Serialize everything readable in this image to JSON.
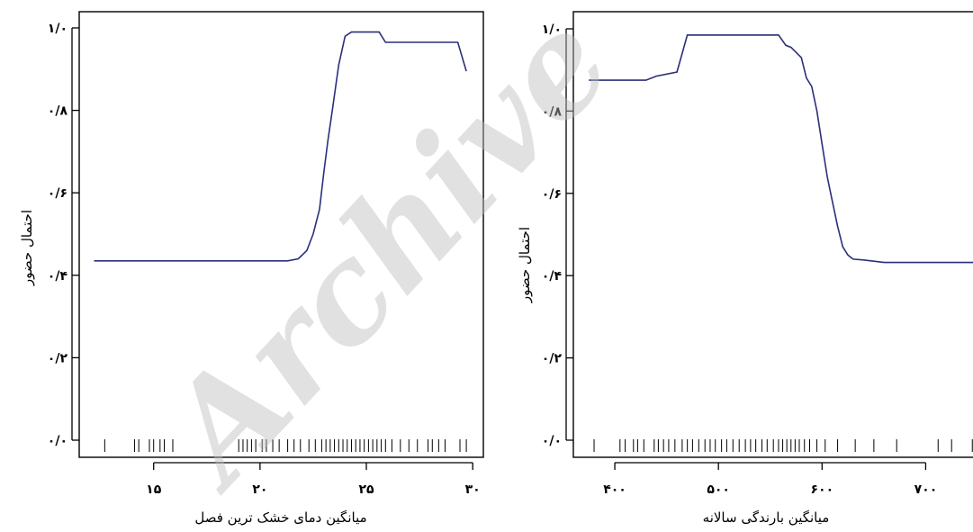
{
  "watermark": "Archive",
  "chart_data": [
    {
      "type": "line",
      "xlabel": "میانگین دمای خشک ترین فصل",
      "ylabel": "احتمال حضور",
      "xlim": [
        11.5,
        30.5
      ],
      "ylim": [
        0.0,
        1.0
      ],
      "x_ticks": [
        15,
        20,
        25,
        30
      ],
      "x_tick_labels": [
        "۱۵",
        "۲۰",
        "۲۵",
        "۳۰"
      ],
      "y_ticks": [
        0.0,
        0.2,
        0.4,
        0.6,
        0.8,
        1.0
      ],
      "y_tick_labels": [
        "۰/۰",
        "۰/۲",
        "۰/۴",
        "۰/۶",
        "۰/۸",
        "۱/۰"
      ],
      "series": [
        {
          "x": [
            12.2,
            21.3,
            21.8,
            22.2,
            22.5,
            22.8,
            23.0,
            23.2,
            23.4,
            23.7,
            24.0,
            24.3,
            24.6,
            25.6,
            25.9,
            26.2,
            29.3,
            29.7
          ],
          "y": [
            0.435,
            0.435,
            0.44,
            0.46,
            0.5,
            0.56,
            0.65,
            0.73,
            0.8,
            0.91,
            0.98,
            0.99,
            0.99,
            0.99,
            0.965,
            0.965,
            0.965,
            0.895
          ]
        }
      ],
      "rug": [
        12.7,
        14.1,
        14.3,
        14.8,
        15.0,
        15.3,
        15.5,
        15.9,
        19.0,
        19.2,
        19.4,
        19.6,
        19.8,
        20.1,
        20.3,
        20.6,
        20.9,
        21.3,
        21.6,
        21.9,
        22.3,
        22.6,
        22.9,
        23.1,
        23.3,
        23.5,
        23.7,
        23.9,
        24.1,
        24.3,
        24.5,
        24.7,
        24.9,
        25.1,
        25.3,
        25.5,
        25.7,
        25.9,
        26.2,
        26.6,
        27.0,
        27.4,
        27.9,
        28.1,
        28.4,
        28.7,
        29.4,
        29.7
      ]
    },
    {
      "type": "line",
      "xlabel": "میانگین بارندگی سالانه",
      "ylabel": "احتمال حضور",
      "xlim": [
        360,
        750
      ],
      "ylim": [
        0.0,
        1.0
      ],
      "x_ticks": [
        400,
        500,
        600,
        700
      ],
      "x_tick_labels": [
        "۴۰۰",
        "۵۰۰",
        "۶۰۰",
        "۷۰۰"
      ],
      "y_ticks": [
        0.0,
        0.2,
        0.4,
        0.6,
        0.8,
        1.0
      ],
      "y_tick_labels": [
        "۰/۰",
        "۰/۲",
        "۰/۴",
        "۰/۶",
        "۰/۸",
        "۱/۰"
      ],
      "series": [
        {
          "x": [
            375,
            430,
            440,
            460,
            465,
            470,
            558,
            565,
            570,
            580,
            585,
            590,
            595,
            600,
            605,
            610,
            615,
            620,
            625,
            630,
            640,
            650,
            660,
            670,
            750
          ],
          "y": [
            0.875,
            0.875,
            0.885,
            0.895,
            0.94,
            0.985,
            0.985,
            0.96,
            0.955,
            0.93,
            0.88,
            0.86,
            0.8,
            0.72,
            0.64,
            0.58,
            0.52,
            0.47,
            0.45,
            0.44,
            0.438,
            0.435,
            0.432,
            0.432,
            0.432
          ]
        }
      ],
      "rug": [
        380,
        405,
        410,
        418,
        422,
        428,
        438,
        442,
        447,
        452,
        458,
        465,
        470,
        475,
        481,
        487,
        492,
        497,
        503,
        508,
        514,
        520,
        526,
        531,
        536,
        542,
        547,
        553,
        558,
        562,
        566,
        570,
        574,
        578,
        583,
        588,
        595,
        603,
        615,
        632,
        650,
        672,
        712,
        725,
        745
      ]
    }
  ]
}
